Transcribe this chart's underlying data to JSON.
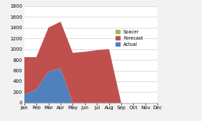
{
  "months": [
    "Jan",
    "Feb",
    "Mar",
    "Apr",
    "May",
    "Jun",
    "Jul",
    "Aug",
    "Sep",
    "Oct",
    "Nov",
    "Dec"
  ],
  "actual": [
    150,
    250,
    580,
    640,
    0,
    0,
    0,
    0,
    0,
    0,
    0,
    0
  ],
  "forecast": [
    700,
    600,
    820,
    870,
    930,
    950,
    980,
    1000,
    0,
    0,
    0,
    0
  ],
  "spacer": [
    0,
    0,
    0,
    0,
    0,
    0,
    0,
    0,
    0,
    0,
    0,
    0
  ],
  "ylim": [
    0,
    1800
  ],
  "yticks": [
    0,
    200,
    400,
    600,
    800,
    1000,
    1200,
    1400,
    1600,
    1800
  ],
  "actual_color": "#4F81BD",
  "forecast_color": "#C0504D",
  "spacer_color": "#9BBB59",
  "bg_color": "#F2F2F2",
  "plot_bg": "#FFFFFF",
  "grid_color": "#CCCCCC"
}
